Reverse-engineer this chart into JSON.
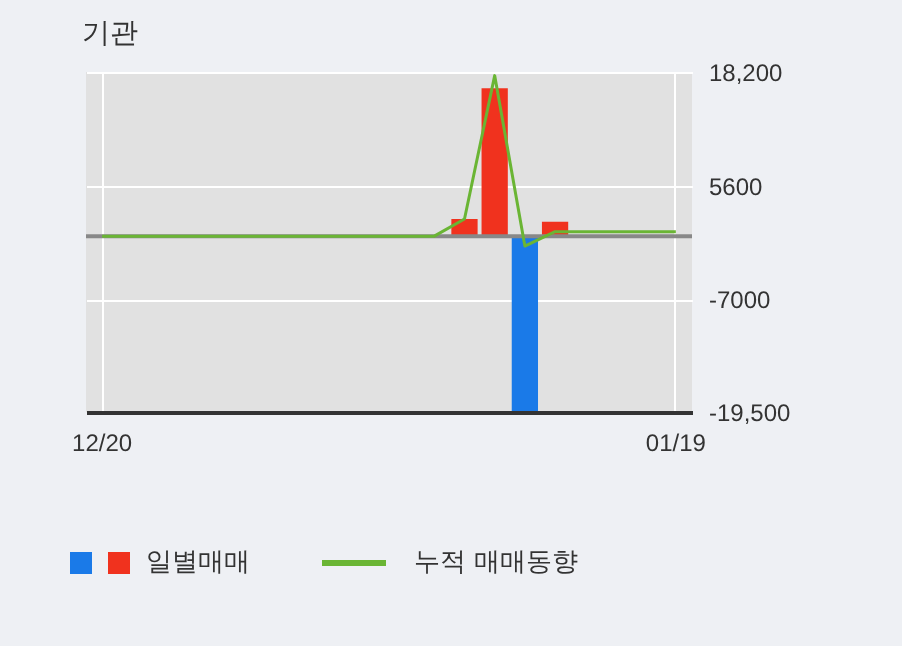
{
  "chart_data": {
    "type": "bar",
    "title": "기관",
    "categories": [
      "12/20",
      null,
      null,
      null,
      null,
      null,
      null,
      null,
      null,
      null,
      null,
      null,
      null,
      null,
      null,
      null,
      null,
      null,
      null,
      "01/19"
    ],
    "series": [
      {
        "name": "일별매매",
        "colors": [
          "#f0321e",
          "#f0321e",
          "#f0321e",
          "#f0321e",
          "#f0321e",
          "#f0321e",
          "#f0321e",
          "#f0321e",
          "#f0321e",
          "#f0321e",
          "#f0321e",
          "#f0321e",
          "#f0321e",
          "#f0321e",
          "#1a7ae8",
          "#f0321e",
          "#f0321e",
          "#f0321e",
          "#f0321e",
          "#f0321e"
        ],
        "values": [
          0,
          0,
          0,
          0,
          0,
          0,
          0,
          0,
          0,
          0,
          0,
          0,
          1900,
          16400,
          -19400,
          1600,
          0,
          0,
          0,
          0
        ]
      },
      {
        "name": "누적 매매동향",
        "type": "line",
        "color": "#6ab534",
        "values": [
          0,
          0,
          0,
          0,
          0,
          0,
          0,
          0,
          0,
          0,
          0,
          0,
          1900,
          17800,
          -1100,
          500,
          500,
          500,
          500,
          500
        ]
      }
    ],
    "ylim": [
      -19500,
      18200
    ],
    "yticks": [
      {
        "value": 18200,
        "label": "18,200"
      },
      5600,
      -7000,
      {
        "value": -19500,
        "label": "-19,500"
      }
    ],
    "ref_lines": [
      {
        "axis": "y",
        "value": 0,
        "color": "#888888"
      }
    ],
    "grid": true,
    "legend": "bottom"
  }
}
